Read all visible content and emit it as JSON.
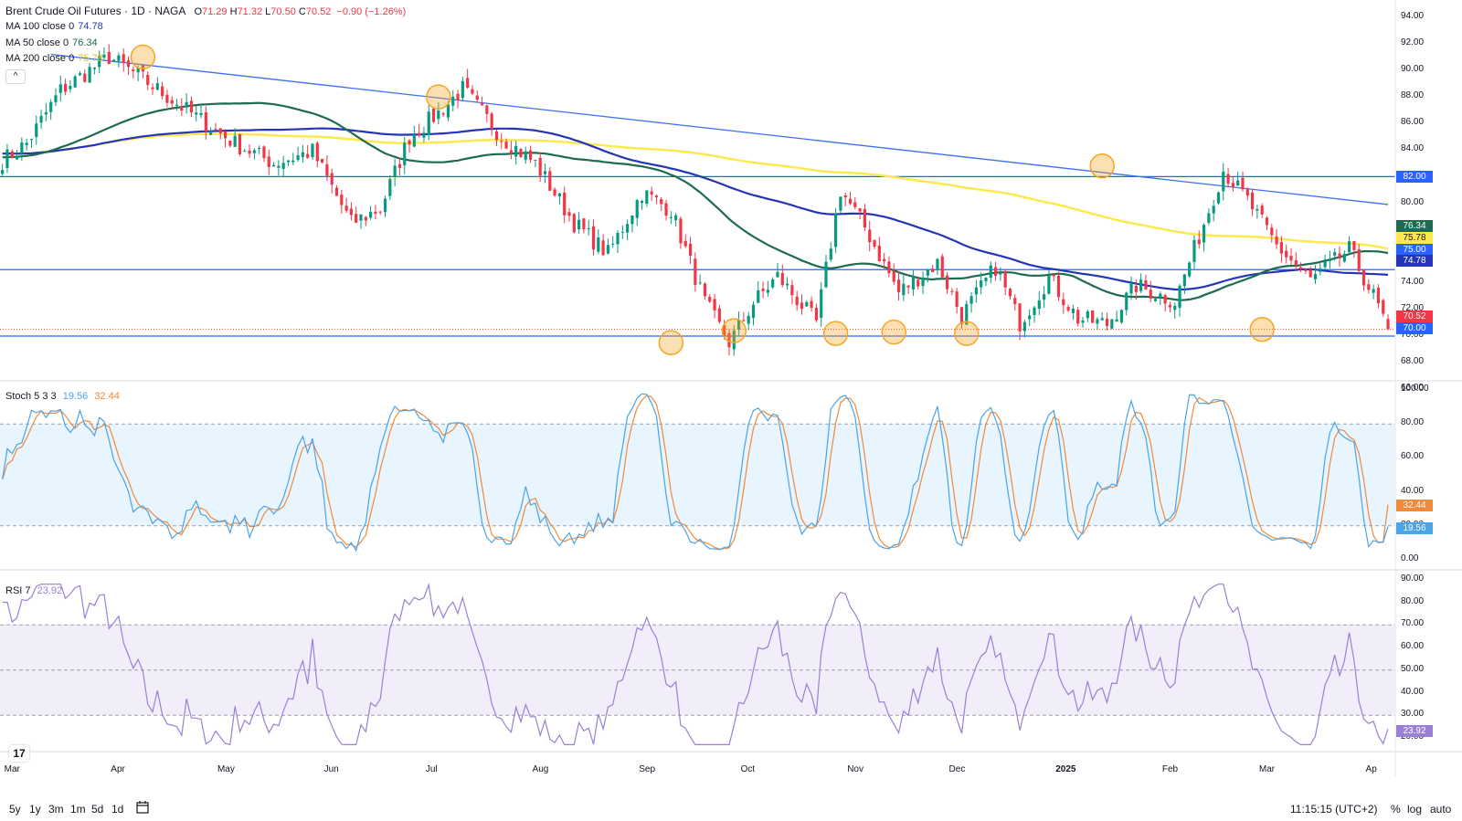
{
  "header": {
    "title": "Brent Crude Oil Futures · 1D · NAGA",
    "open_label": "O",
    "open": "71.29",
    "high_label": "H",
    "high": "71.32",
    "low_label": "L",
    "low": "70.50",
    "close_label": "C",
    "close": "70.52",
    "change": "−0.90 (−1.26%)"
  },
  "legend": {
    "ma100_label": "MA 100 close 0",
    "ma100_value": "74.78",
    "ma50_label": "MA 50 close 0",
    "ma50_value": "76.34",
    "ma200_label": "MA 200 close 0",
    "ma200_value": "75.78",
    "collapse": "^",
    "stoch_label": "Stoch 5 3 3",
    "stoch_k": "19.56",
    "stoch_d": "32.44",
    "rsi_label": "RSI 7",
    "rsi_value": "23.92"
  },
  "colors": {
    "up": "#089981",
    "down": "#f23645",
    "ma50": "#1e6b4f",
    "ma100": "#2435b8",
    "ma200": "#ffe84a",
    "trendline": "#3d6ef5",
    "hline": "#2962ff",
    "marker": "#f5a623",
    "stoch_k": "#4ba3e8",
    "stoch_d": "#f08a3a",
    "rsi": "#9b7fd4"
  },
  "chart_data": {
    "type": "candlestick",
    "price_axis": {
      "ticks": [
        "94.00",
        "92.00",
        "90.00",
        "88.00",
        "86.00",
        "84.00",
        "82.00",
        "80.00",
        "78.00",
        "76.00",
        "74.00",
        "72.00",
        "70.00",
        "68.00",
        "66.00"
      ]
    },
    "price_tags": [
      {
        "value": "82.00",
        "color": "#2962ff"
      },
      {
        "value": "76.34",
        "color": "#1e6b4f"
      },
      {
        "value": "75.78",
        "color": "#ffe84a",
        "text": "#131722"
      },
      {
        "value": "75.00",
        "color": "#2962ff"
      },
      {
        "value": "74.78",
        "color": "#2435b8"
      },
      {
        "value": "70.52",
        "color": "#f23645"
      },
      {
        "value": "70.00",
        "color": "#2962ff"
      }
    ],
    "horizontal_levels": [
      82.0,
      75.0,
      70.0
    ],
    "trendline": {
      "from_day": 10,
      "from_price": 91.2,
      "to_day": 286,
      "to_price": 79.9
    },
    "stoch_axis": {
      "ticks": [
        "100.00",
        "80.00",
        "60.00",
        "40.00",
        "20.00",
        "0.00"
      ],
      "tags": [
        {
          "value": "32.44",
          "color": "#f08a3a"
        },
        {
          "value": "19.56",
          "color": "#4ba3e8"
        }
      ]
    },
    "rsi_axis": {
      "ticks": [
        "90.00",
        "80.00",
        "70.00",
        "60.00",
        "50.00",
        "40.00",
        "30.00",
        "20.00"
      ],
      "tags": [
        {
          "value": "23.92",
          "color": "#9b7fd4"
        }
      ]
    },
    "time_axis": [
      "Mar",
      "Apr",
      "May",
      "Jun",
      "Jul",
      "Aug",
      "Sep",
      "Oct",
      "Nov",
      "Dec",
      "2025",
      "Feb",
      "Mar",
      "Ap"
    ],
    "keypoints": [
      [
        0,
        83.2
      ],
      [
        5,
        84.5
      ],
      [
        12,
        88.5
      ],
      [
        22,
        91.0
      ],
      [
        28,
        89.6
      ],
      [
        38,
        87.0
      ],
      [
        48,
        84.5
      ],
      [
        56,
        83.0
      ],
      [
        64,
        83.9
      ],
      [
        72,
        78.5
      ],
      [
        78,
        79.6
      ],
      [
        84,
        85.0
      ],
      [
        90,
        86.8
      ],
      [
        95,
        88.6
      ],
      [
        103,
        85.0
      ],
      [
        110,
        83.0
      ],
      [
        118,
        78.5
      ],
      [
        125,
        76.2
      ],
      [
        132,
        80.8
      ],
      [
        138,
        79.5
      ],
      [
        145,
        72.5
      ],
      [
        150,
        69.5
      ],
      [
        155,
        72.5
      ],
      [
        160,
        74.5
      ],
      [
        168,
        71.0
      ],
      [
        173,
        81.0
      ],
      [
        178,
        78.2
      ],
      [
        185,
        73.3
      ],
      [
        193,
        75.5
      ],
      [
        198,
        71.5
      ],
      [
        205,
        75.2
      ],
      [
        210,
        71.0
      ],
      [
        216,
        74.4
      ],
      [
        222,
        71.3
      ],
      [
        228,
        70.9
      ],
      [
        234,
        73.8
      ],
      [
        242,
        72.6
      ],
      [
        248,
        78.5
      ],
      [
        252,
        82.5
      ],
      [
        257,
        80.2
      ],
      [
        263,
        76.8
      ],
      [
        270,
        74.2
      ],
      [
        278,
        76.5
      ],
      [
        283,
        73.0
      ],
      [
        286,
        70.52
      ]
    ],
    "time_months": [
      {
        "label": "Mar",
        "day": 0
      },
      {
        "label": "Apr",
        "day": 22
      },
      {
        "label": "May",
        "day": 44
      },
      {
        "label": "Jun",
        "day": 66
      },
      {
        "label": "Jul",
        "day": 87
      },
      {
        "label": "Aug",
        "day": 109
      },
      {
        "label": "Sep",
        "day": 131
      },
      {
        "label": "Oct",
        "day": 152
      },
      {
        "label": "Nov",
        "day": 174
      },
      {
        "label": "Dec",
        "day": 195
      },
      {
        "label": "2025",
        "day": 217
      },
      {
        "label": "Feb",
        "day": 239
      },
      {
        "label": "Mar",
        "day": 259
      },
      {
        "label": "Ap",
        "day": 281
      }
    ],
    "markers": [
      {
        "day": 29,
        "price": 91.0
      },
      {
        "day": 90,
        "price": 88.0
      },
      {
        "day": 227,
        "price": 82.8
      },
      {
        "day": 138,
        "price": 69.5
      },
      {
        "day": 151,
        "price": 70.4
      },
      {
        "day": 172,
        "price": 70.2
      },
      {
        "day": 184,
        "price": 70.3
      },
      {
        "day": 199,
        "price": 70.2
      },
      {
        "day": 260,
        "price": 70.5
      }
    ]
  },
  "bottom": {
    "timeframes": [
      "5y",
      "1y",
      "3m",
      "1m",
      "5d",
      "1d"
    ],
    "clock": "11:15:15 (UTC+2)",
    "percent": "%",
    "log": "log",
    "auto": "auto"
  }
}
